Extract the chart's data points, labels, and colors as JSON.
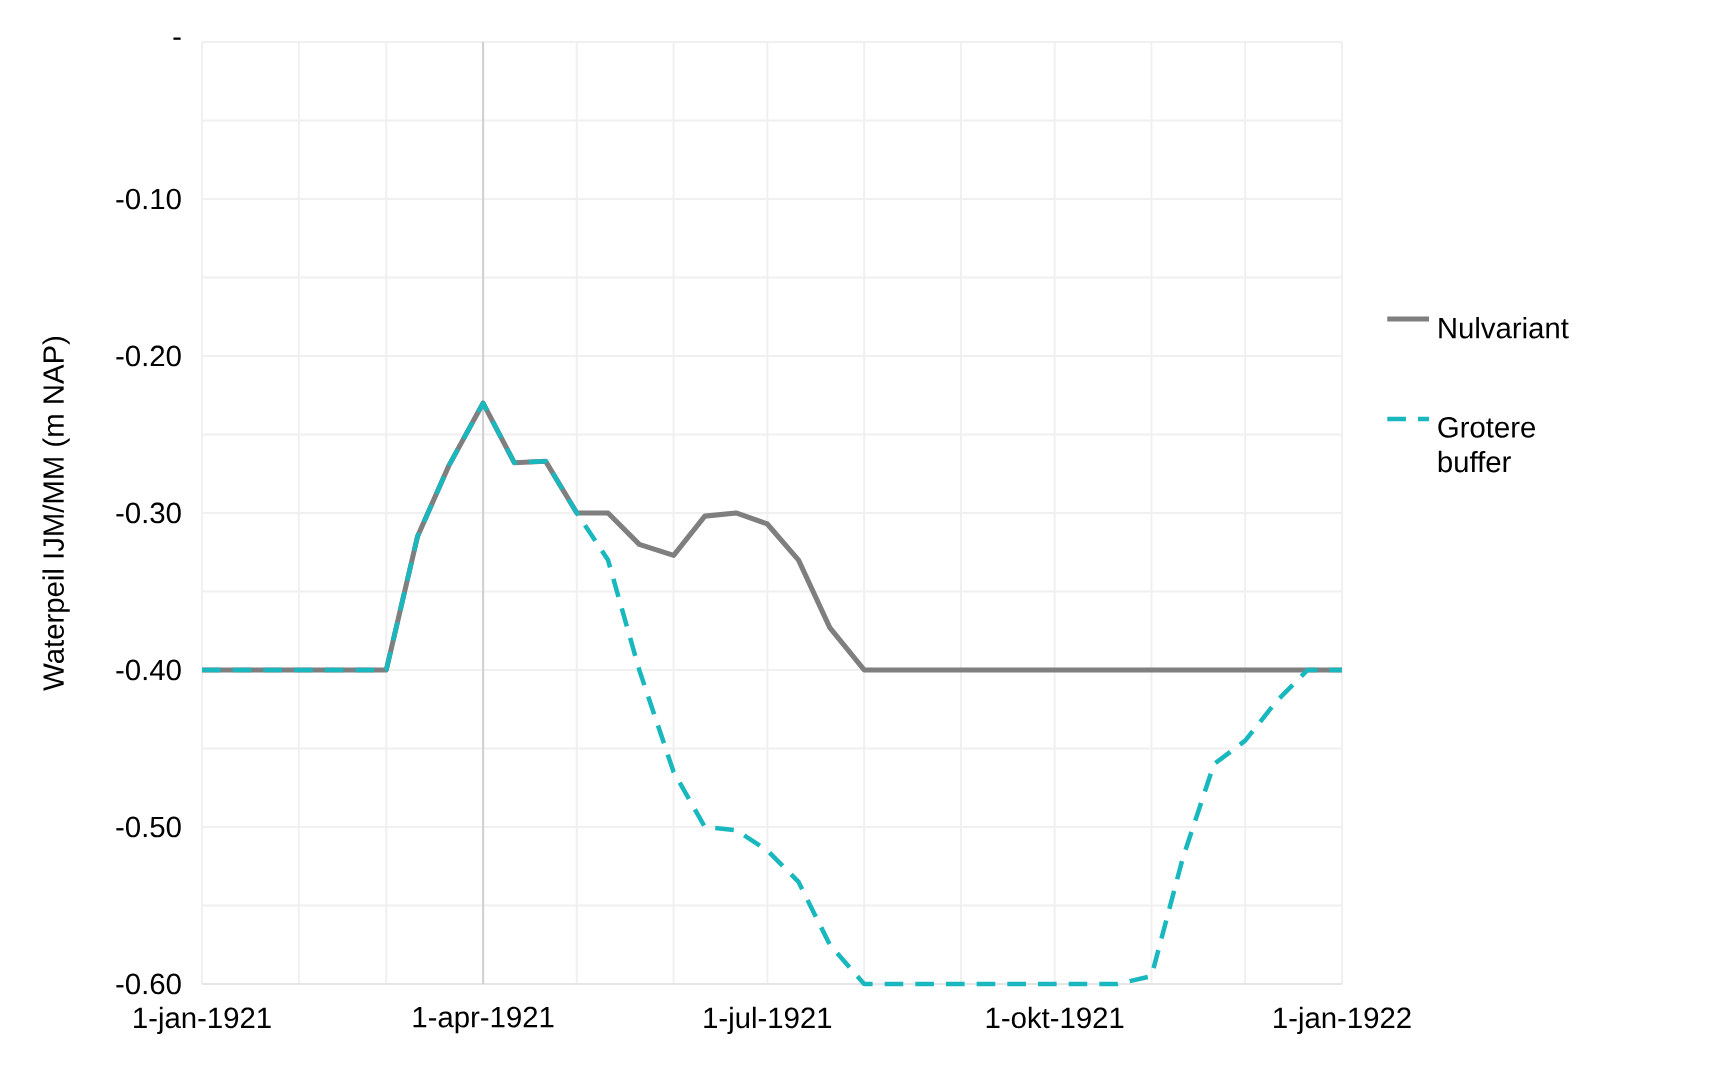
{
  "chart_data": {
    "type": "line",
    "ylabel": "Waterpeil IJM/MM (m NAP)",
    "x": [
      "1921-01-01",
      "1921-01-11",
      "1921-01-21",
      "1921-02-01",
      "1921-02-11",
      "1921-02-21",
      "1921-03-01",
      "1921-03-11",
      "1921-03-21",
      "1921-04-01",
      "1921-04-11",
      "1921-04-21",
      "1921-05-01",
      "1921-05-11",
      "1921-05-21",
      "1921-06-01",
      "1921-06-11",
      "1921-06-21",
      "1921-07-01",
      "1921-07-11",
      "1921-07-21",
      "1921-08-01",
      "1921-08-11",
      "1921-08-21",
      "1921-09-01",
      "1921-09-11",
      "1921-09-21",
      "1921-10-01",
      "1921-10-11",
      "1921-10-21",
      "1921-11-01",
      "1921-11-11",
      "1921-11-21",
      "1921-12-01",
      "1921-12-11",
      "1921-12-21",
      "1922-01-01"
    ],
    "series": [
      {
        "name": "Nulvariant",
        "color": "#7f7f7f",
        "line_style": "solid",
        "values": [
          -0.4,
          -0.4,
          -0.4,
          -0.4,
          -0.4,
          -0.4,
          -0.4,
          -0.315,
          -0.27,
          -0.23,
          -0.268,
          -0.267,
          -0.3,
          -0.3,
          -0.32,
          -0.327,
          -0.302,
          -0.3,
          -0.307,
          -0.33,
          -0.373,
          -0.4,
          -0.4,
          -0.4,
          -0.4,
          -0.4,
          -0.4,
          -0.4,
          -0.4,
          -0.4,
          -0.4,
          -0.4,
          -0.4,
          -0.4,
          -0.4,
          -0.4,
          -0.4
        ]
      },
      {
        "name": "Grotere buffer",
        "color": "#19b8bf",
        "line_style": "dashed",
        "values": [
          -0.4,
          -0.4,
          -0.4,
          -0.4,
          -0.4,
          -0.4,
          -0.4,
          -0.315,
          -0.27,
          -0.23,
          -0.268,
          -0.267,
          -0.3,
          -0.33,
          -0.4,
          -0.465,
          -0.5,
          -0.502,
          -0.515,
          -0.535,
          -0.575,
          -0.6,
          -0.6,
          -0.6,
          -0.6,
          -0.6,
          -0.6,
          -0.6,
          -0.6,
          -0.6,
          -0.595,
          -0.52,
          -0.46,
          -0.445,
          -0.42,
          -0.4,
          -0.4
        ]
      }
    ],
    "xlim": [
      "1921-01-01",
      "1922-01-01"
    ],
    "xticks": [
      {
        "value": "1921-01-01",
        "label": "1-jan-1921"
      },
      {
        "value": "1921-02-01",
        "label": null
      },
      {
        "value": "1921-03-01",
        "label": null
      },
      {
        "value": "1921-04-01",
        "label": "1-apr-1921"
      },
      {
        "value": "1921-05-01",
        "label": null
      },
      {
        "value": "1921-06-01",
        "label": null
      },
      {
        "value": "1921-07-01",
        "label": "1-jul-1921"
      },
      {
        "value": "1921-08-01",
        "label": null
      },
      {
        "value": "1921-09-01",
        "label": null
      },
      {
        "value": "1921-10-01",
        "label": "1-okt-1921"
      },
      {
        "value": "1921-11-01",
        "label": null
      },
      {
        "value": "1921-12-01",
        "label": null
      },
      {
        "value": "1922-01-01",
        "label": "1-jan-1922"
      }
    ],
    "ylim": [
      -0.6,
      0
    ],
    "yticks": [
      {
        "value": 0,
        "label": "-"
      },
      {
        "value": -0.05,
        "label": null
      },
      {
        "value": -0.1,
        "label": "-0.10"
      },
      {
        "value": -0.15,
        "label": null
      },
      {
        "value": -0.2,
        "label": "-0.20"
      },
      {
        "value": -0.25,
        "label": null
      },
      {
        "value": -0.3,
        "label": "-0.30"
      },
      {
        "value": -0.35,
        "label": null
      },
      {
        "value": -0.4,
        "label": "-0.40"
      },
      {
        "value": -0.45,
        "label": null
      },
      {
        "value": -0.5,
        "label": "-0.50"
      },
      {
        "value": -0.55,
        "label": null
      },
      {
        "value": -0.6,
        "label": "-0.60"
      }
    ],
    "ref_lines": [
      {
        "axis": "x",
        "value": "1921-04-01",
        "color": "#d0d0d0"
      }
    ],
    "grid": true,
    "legend": "right",
    "marker": "none"
  }
}
